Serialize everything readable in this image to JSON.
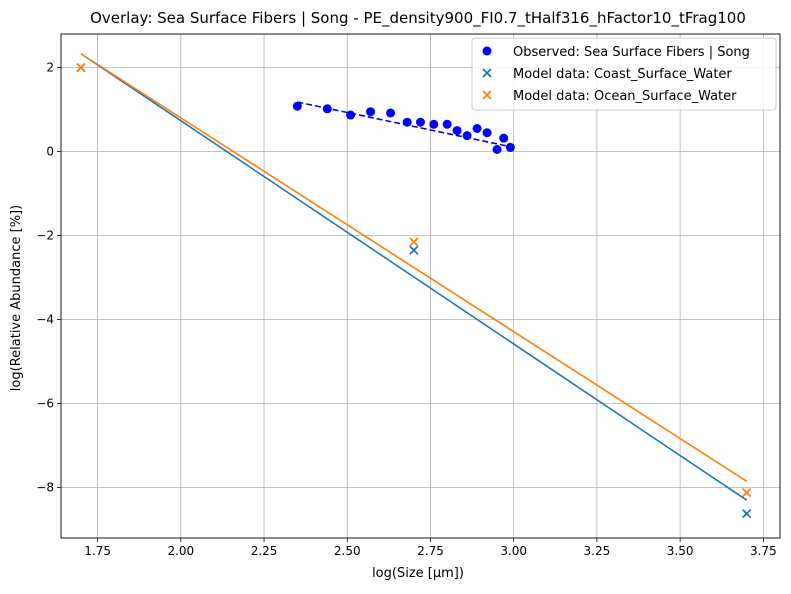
{
  "chart_data": {
    "type": "scatter",
    "title": "Overlay: Sea Surface Fibers | Song - PE_density900_FI0.7_tHalf316_hFactor10_tFrag100",
    "xlabel": "log(Size [μm])",
    "ylabel": "log(Relative Abundance [%])",
    "xlim": [
      1.64,
      3.8
    ],
    "ylim": [
      -9.2,
      2.8
    ],
    "xticks": [
      1.75,
      2.0,
      2.25,
      2.5,
      2.75,
      3.0,
      3.25,
      3.5,
      3.75
    ],
    "xtick_labels": [
      "1.75",
      "2.00",
      "2.25",
      "2.50",
      "2.75",
      "3.00",
      "3.25",
      "3.50",
      "3.75"
    ],
    "yticks": [
      -8,
      -6,
      -4,
      -2,
      0,
      2
    ],
    "ytick_labels": [
      "−8",
      "−6",
      "−4",
      "−2",
      "0",
      "2"
    ],
    "grid": true,
    "legend_position": "top-right",
    "series": [
      {
        "name": "Observed: Sea Surface Fibers | Song",
        "kind": "scatter",
        "marker": "circle",
        "color": "#0000ff",
        "x": [
          2.35,
          2.44,
          2.51,
          2.57,
          2.63,
          2.68,
          2.72,
          2.76,
          2.8,
          2.83,
          2.86,
          2.89,
          2.92,
          2.95,
          2.97,
          2.99
        ],
        "y": [
          1.08,
          1.02,
          0.87,
          0.95,
          0.92,
          0.7,
          0.7,
          0.65,
          0.65,
          0.5,
          0.38,
          0.55,
          0.45,
          0.05,
          0.32,
          0.1
        ]
      },
      {
        "name": "",
        "kind": "line",
        "dash": "dashed",
        "color": "#0000ff",
        "x": [
          2.35,
          3.0
        ],
        "y": [
          1.18,
          0.1
        ]
      },
      {
        "name": "Model data: Coast_Surface_Water",
        "kind": "scatter",
        "marker": "x",
        "color": "#1f77b4",
        "x": [
          1.7,
          2.7,
          3.7
        ],
        "y": [
          2.0,
          -2.35,
          -8.62
        ]
      },
      {
        "name": "",
        "kind": "line",
        "color": "#1f77b4",
        "x": [
          1.7,
          3.7
        ],
        "y": [
          2.33,
          -8.3
        ]
      },
      {
        "name": "Model data: Ocean_Surface_Water",
        "kind": "scatter",
        "marker": "x",
        "color": "#ff7f0e",
        "x": [
          1.7,
          2.7,
          3.7
        ],
        "y": [
          2.0,
          -2.15,
          -8.12
        ]
      },
      {
        "name": "",
        "kind": "line",
        "color": "#ff7f0e",
        "x": [
          1.7,
          3.7
        ],
        "y": [
          2.33,
          -7.85
        ]
      }
    ]
  }
}
